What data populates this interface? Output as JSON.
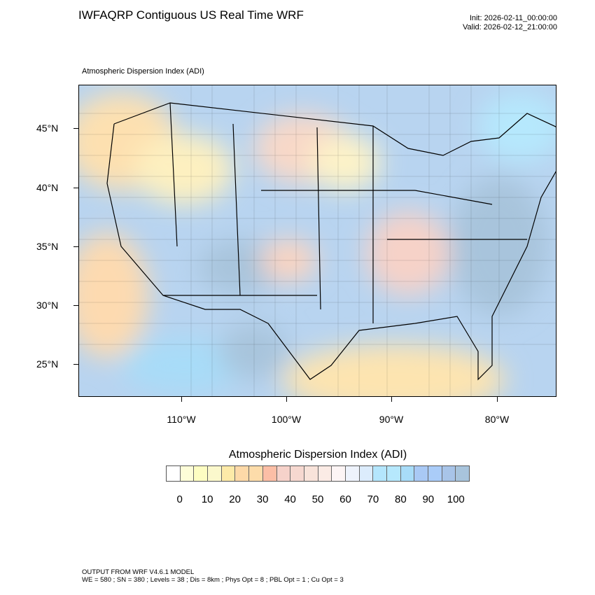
{
  "header": {
    "title": "IWFAQRP Contiguous US Real Time WRF",
    "init": "Init: 2026-02-11_00:00:00",
    "valid": "Valid: 2026-02-12_21:00:00",
    "subtitle": "Atmospheric Dispersion Index   (ADI)"
  },
  "map": {
    "lat_labels": [
      "45°N",
      "40°N",
      "35°N",
      "30°N",
      "25°N"
    ],
    "lon_labels": [
      "110°W",
      "100°W",
      "90°W",
      "80°W"
    ]
  },
  "colorbar": {
    "title": "Atmospheric Dispersion Index  (ADI)",
    "colors": [
      "#ffffff",
      "#fdfdd8",
      "#fdfdc2",
      "#fbf8cc",
      "#fdeaa8",
      "#fdd9a8",
      "#fddcaa",
      "#fcbea6",
      "#f6d2ca",
      "#f6d8d0",
      "#f8e3da",
      "#fbebe5",
      "#fdf5f5",
      "#eef3fc",
      "#dcecfc",
      "#b4e6fd",
      "#b6e8fd",
      "#a8dcf8",
      "#a9c9f5",
      "#aaccf8",
      "#a8c4e8",
      "#a8c4dc"
    ],
    "labels": [
      "0",
      "10",
      "20",
      "30",
      "40",
      "50",
      "60",
      "70",
      "80",
      "90",
      "100"
    ]
  },
  "footer": {
    "line1": "OUTPUT FROM WRF V4.6.1 MODEL",
    "line2": "WE = 580 ; SN = 380 ; Levels = 38 ; Dis = 8km ; Phys Opt = 8 ; PBL Opt = 1 ; Cu Opt = 3"
  }
}
